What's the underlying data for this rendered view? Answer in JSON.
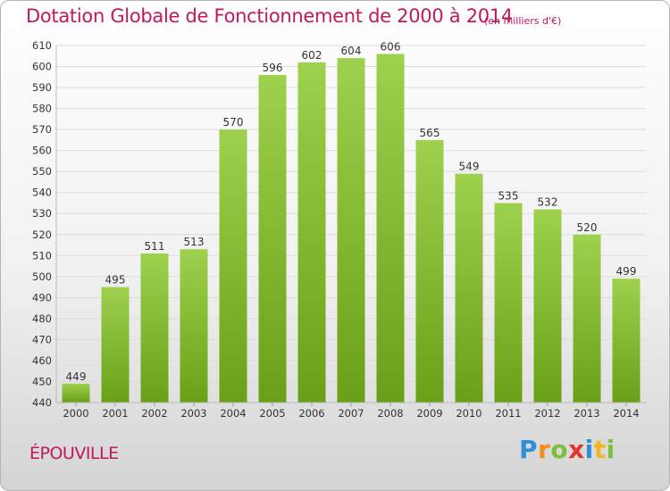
{
  "header": {
    "title": "Dotation Globale de Fonctionnement de 2000 à 2014",
    "unit_note": "(en milliers d'€)"
  },
  "footer": {
    "commune": "ÉPOUVILLE",
    "logo_text": "Proxiti",
    "logo_letters": [
      {
        "ch": "P",
        "color": "#2e8fd8"
      },
      {
        "ch": "r",
        "color": "#f28c1b"
      },
      {
        "ch": "o",
        "color": "#7cbf3a"
      },
      {
        "ch": "x",
        "color": "#e3342f"
      },
      {
        "ch": "i",
        "color": "#2e8fd8"
      },
      {
        "ch": "t",
        "color": "#f2b81b"
      },
      {
        "ch": "i",
        "color": "#7cbf3a"
      }
    ]
  },
  "colors": {
    "bar_top": "#9dd14e",
    "bar_bottom": "#6aa017",
    "title": "#c2185b",
    "axis_text": "#333333",
    "grid": "#dcdcdc"
  },
  "chart_data": {
    "type": "bar",
    "title": "Dotation Globale de Fonctionnement de 2000 à 2014",
    "xlabel": "",
    "ylabel": "",
    "categories": [
      "2000",
      "2001",
      "2002",
      "2003",
      "2004",
      "2005",
      "2006",
      "2007",
      "2008",
      "2009",
      "2010",
      "2011",
      "2012",
      "2013",
      "2014"
    ],
    "values": [
      449,
      495,
      511,
      513,
      570,
      596,
      602,
      604,
      606,
      565,
      549,
      535,
      532,
      520,
      499
    ],
    "ylim": [
      440,
      610
    ],
    "yticks": [
      440,
      450,
      460,
      470,
      480,
      490,
      500,
      510,
      520,
      530,
      540,
      550,
      560,
      570,
      580,
      590,
      600,
      610
    ],
    "grid": true,
    "data_labels": true
  }
}
